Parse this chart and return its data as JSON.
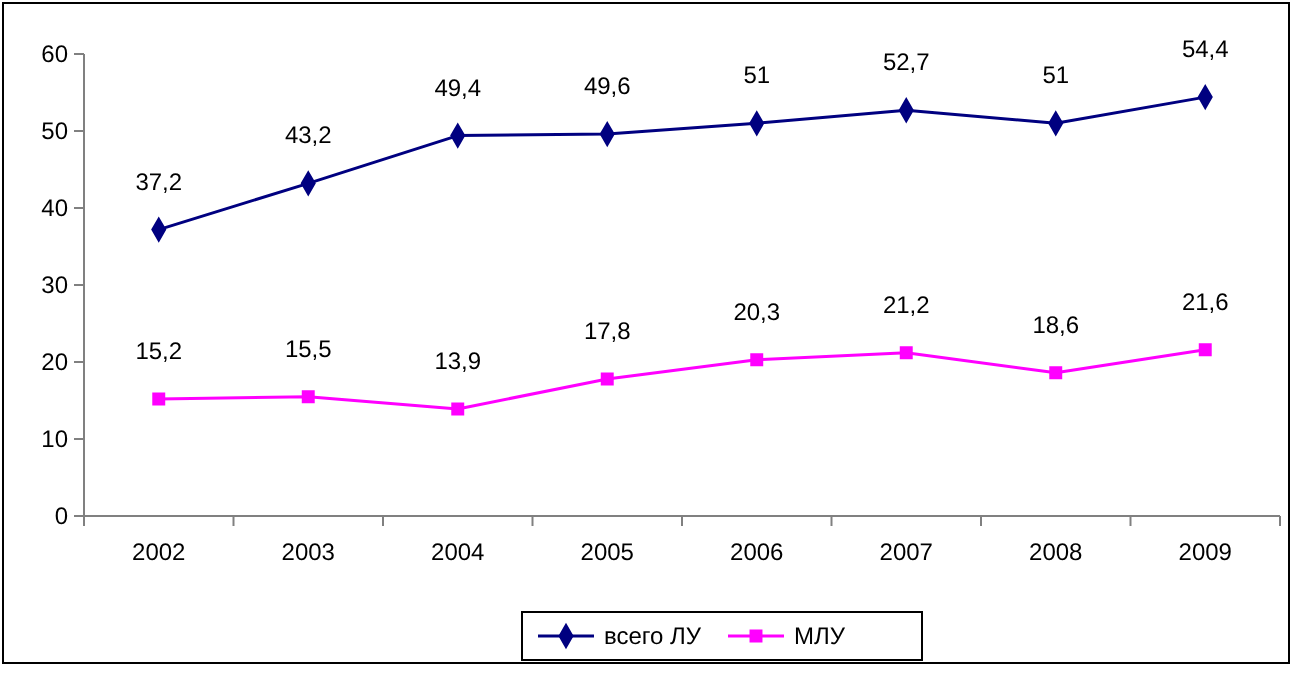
{
  "chart_data": {
    "type": "line",
    "categories": [
      "2002",
      "2003",
      "2004",
      "2005",
      "2006",
      "2007",
      "2008",
      "2009"
    ],
    "series": [
      {
        "name": "всего ЛУ",
        "color": "#000080",
        "marker": "diamond",
        "values": [
          37.2,
          43.2,
          49.4,
          49.6,
          51,
          52.7,
          51,
          54.4
        ],
        "value_labels": [
          "37,2",
          "43,2",
          "49,4",
          "49,6",
          "51",
          "52,7",
          "51",
          "54,4"
        ]
      },
      {
        "name": "МЛУ",
        "color": "#ff00ff",
        "marker": "square",
        "values": [
          15.2,
          15.5,
          13.9,
          17.8,
          20.3,
          21.2,
          18.6,
          21.6
        ],
        "value_labels": [
          "15,2",
          "15,5",
          "13,9",
          "17,8",
          "20,3",
          "21,2",
          "18,6",
          "21,6"
        ]
      }
    ],
    "ylim": [
      0,
      60
    ],
    "yticks": [
      0,
      10,
      20,
      30,
      40,
      50,
      60
    ],
    "grid": false,
    "legend": "bottom"
  }
}
